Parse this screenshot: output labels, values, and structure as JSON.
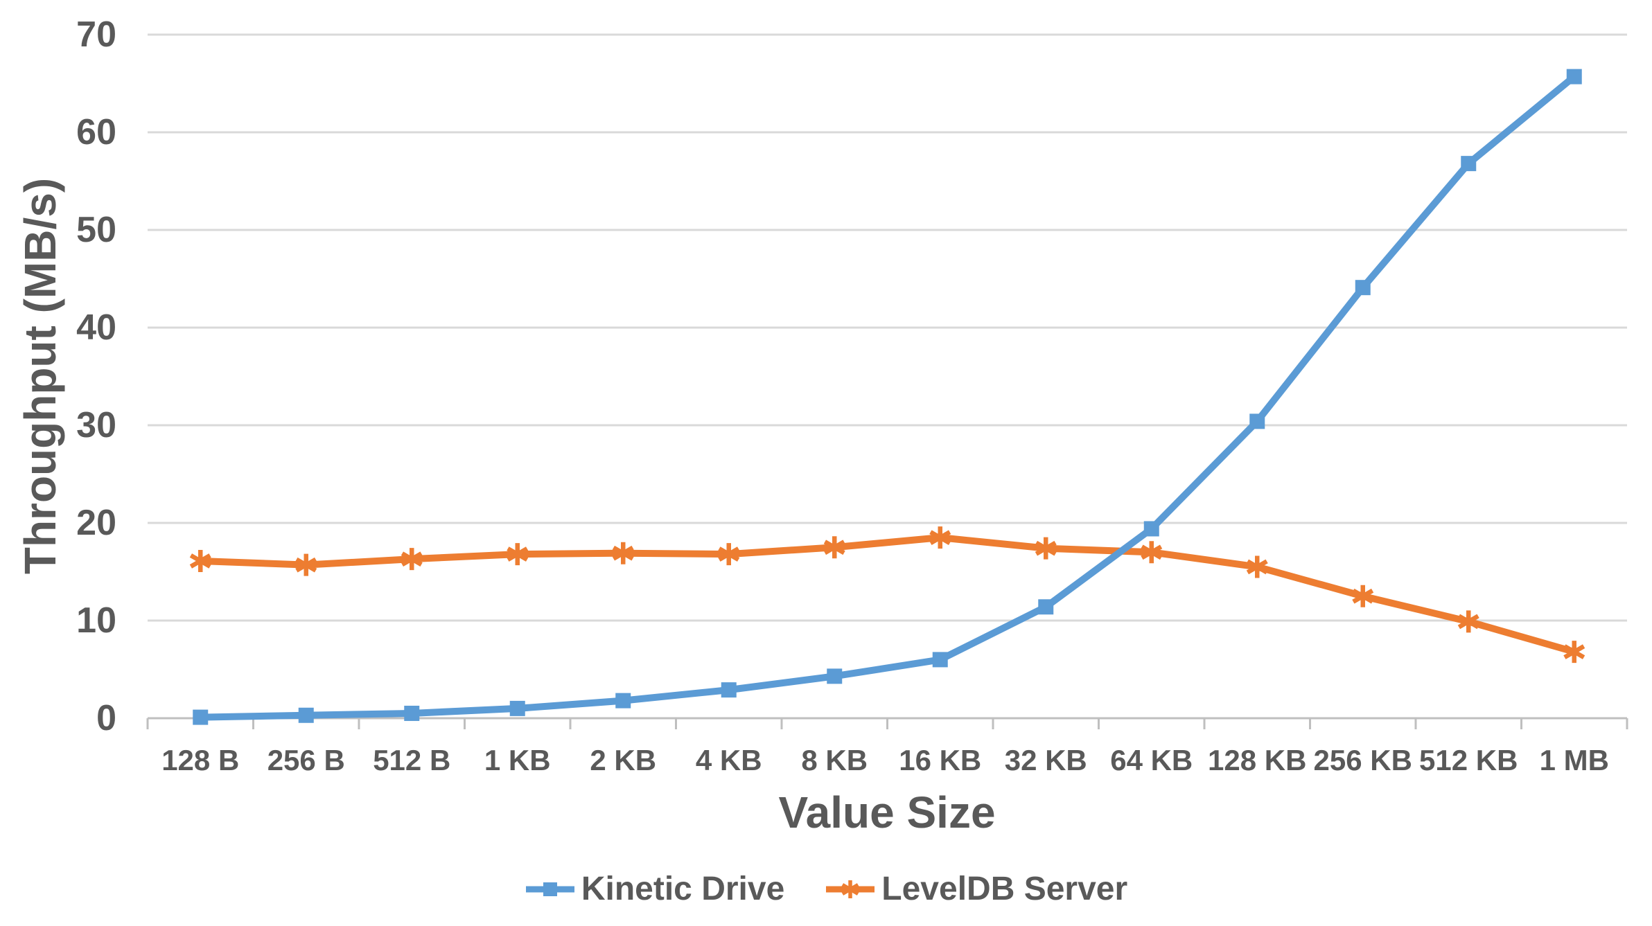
{
  "chart_data": {
    "type": "line",
    "title": "",
    "xlabel": "Value Size",
    "ylabel": "Throughput (MB/s)",
    "categories": [
      "128 B",
      "256 B",
      "512 B",
      "1 KB",
      "2 KB",
      "4 KB",
      "8 KB",
      "16 KB",
      "32 KB",
      "64 KB",
      "128 KB",
      "256 KB",
      "512 KB",
      "1 MB"
    ],
    "series": [
      {
        "name": "Kinetic Drive",
        "color": "#5B9BD5",
        "marker": "square",
        "values": [
          0.1,
          0.3,
          0.5,
          1.0,
          1.8,
          2.9,
          4.3,
          6.0,
          11.4,
          19.4,
          30.4,
          44.1,
          56.8,
          65.7
        ]
      },
      {
        "name": "LevelDB Server",
        "color": "#ED7D31",
        "marker": "asterisk",
        "values": [
          16.1,
          15.7,
          16.3,
          16.8,
          16.9,
          16.8,
          17.5,
          18.5,
          17.4,
          17.0,
          15.5,
          12.5,
          9.9,
          6.8
        ]
      }
    ],
    "ylim": [
      0,
      70
    ],
    "yticks": [
      0,
      10,
      20,
      30,
      40,
      50,
      60,
      70
    ],
    "grid": "horizontal",
    "legend_position": "bottom"
  },
  "colors": {
    "text": "#595959",
    "gridline": "#D9D9D9",
    "axis": "#BFBFBF",
    "background": "#FFFFFF"
  }
}
